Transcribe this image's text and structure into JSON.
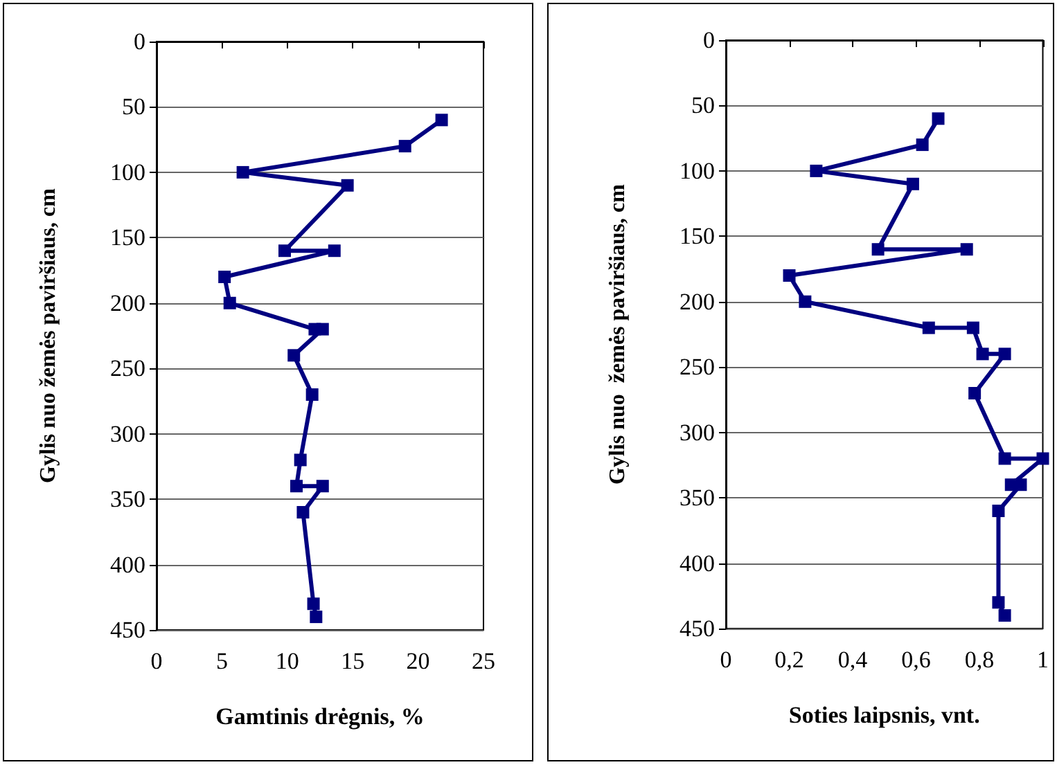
{
  "chart_data": [
    {
      "type": "line",
      "xlabel": "Gamtinis drėgnis, %",
      "ylabel": "Gylis nuo žemės paviršiaus, cm",
      "xlim": [
        0,
        25
      ],
      "xticks": [
        0,
        5,
        10,
        15,
        20,
        25
      ],
      "ylim": [
        450,
        0
      ],
      "yticks": [
        0,
        50,
        100,
        150,
        200,
        250,
        300,
        350,
        400,
        450
      ],
      "grid": "y",
      "marker": "square",
      "line_style": "solid",
      "series": [
        {
          "color": "#000080",
          "x": [
            21.8,
            19.0,
            6.6,
            14.6,
            9.8,
            13.6,
            5.2,
            5.6,
            12.1,
            12.7,
            10.5,
            11.9,
            11.0,
            10.7,
            12.7,
            11.2,
            12.0,
            12.2
          ],
          "values": [
            60,
            80,
            100,
            110,
            160,
            160,
            180,
            200,
            220,
            220,
            240,
            270,
            320,
            340,
            340,
            360,
            430,
            440
          ]
        }
      ]
    },
    {
      "type": "line",
      "xlabel": "Soties laipsnis, vnt.",
      "ylabel": "Gylis nuo  žemės paviršiaus, cm",
      "xlim": [
        0,
        1
      ],
      "xticks": [
        0,
        {
          "value": 0.2,
          "label": "0,2"
        },
        {
          "value": 0.4,
          "label": "0,4"
        },
        {
          "value": 0.6,
          "label": "0,6"
        },
        {
          "value": 0.8,
          "label": "0,8"
        },
        1
      ],
      "ylim": [
        450,
        0
      ],
      "yticks": [
        0,
        50,
        100,
        150,
        200,
        250,
        300,
        350,
        400,
        450
      ],
      "grid": "y",
      "marker": "square",
      "line_style": "solid",
      "series": [
        {
          "color": "#000080",
          "x": [
            0.67,
            0.62,
            0.285,
            0.59,
            0.48,
            0.76,
            0.2,
            0.25,
            0.64,
            0.78,
            0.81,
            0.88,
            0.785,
            0.88,
            1.0,
            0.9,
            0.93,
            0.86,
            0.86,
            0.88
          ],
          "values": [
            60,
            80,
            100,
            110,
            160,
            160,
            180,
            200,
            220,
            220,
            240,
            240,
            270,
            320,
            320,
            340,
            340,
            360,
            430,
            440
          ]
        }
      ]
    }
  ]
}
